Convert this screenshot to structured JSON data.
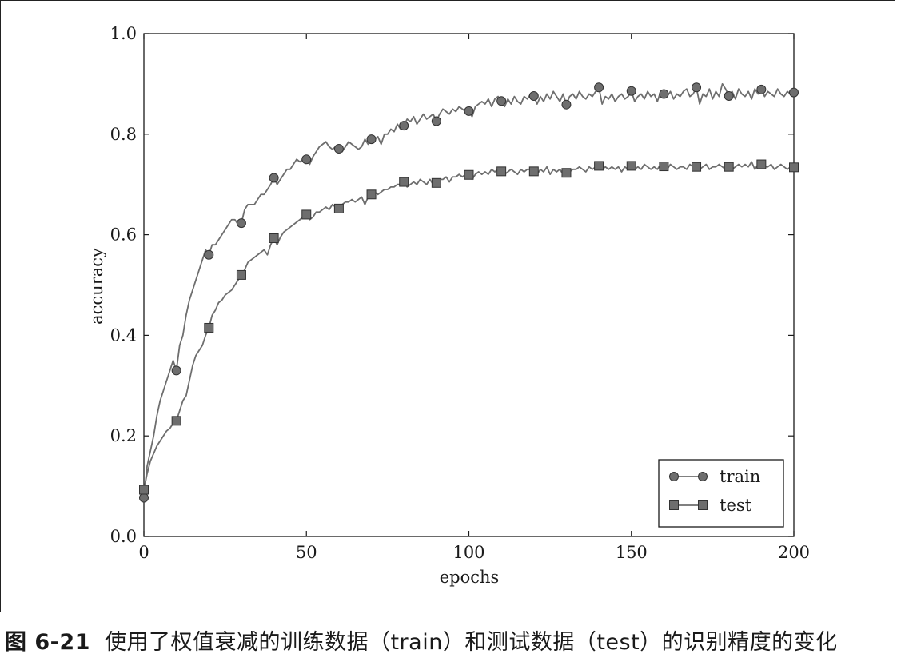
{
  "caption": {
    "figure_number": "图 6-21",
    "text": "使用了权值衰减的训练数据（train）和测试数据（test）的识别精度的变化"
  },
  "chart_data": {
    "type": "line",
    "xlabel": "epochs",
    "ylabel": "accuracy",
    "xlim": [
      0,
      200
    ],
    "ylim": [
      0.0,
      1.0
    ],
    "xticks": [
      0,
      50,
      100,
      150,
      200
    ],
    "yticks": [
      0.0,
      0.2,
      0.4,
      0.6,
      0.8,
      1.0
    ],
    "xtick_labels": [
      "0",
      "50",
      "100",
      "150",
      "200"
    ],
    "ytick_labels": [
      "0.0",
      "0.2",
      "0.4",
      "0.6",
      "0.8",
      "1.0"
    ],
    "grid": false,
    "legend": "bottom-right",
    "line_color": "#6e6e6e",
    "marker_color": "#6e6e6e",
    "series": [
      {
        "name": "train",
        "marker": "circle",
        "x": [
          0,
          1,
          2,
          3,
          4,
          5,
          6,
          7,
          8,
          9,
          10,
          11,
          12,
          13,
          14,
          15,
          16,
          17,
          18,
          19,
          20,
          21,
          22,
          23,
          24,
          25,
          26,
          27,
          28,
          29,
          30,
          31,
          32,
          33,
          34,
          35,
          36,
          37,
          38,
          39,
          40,
          41,
          42,
          43,
          44,
          45,
          46,
          47,
          48,
          49,
          50,
          51,
          52,
          53,
          54,
          55,
          56,
          57,
          58,
          59,
          60,
          61,
          62,
          63,
          64,
          65,
          66,
          67,
          68,
          69,
          70,
          71,
          72,
          73,
          74,
          75,
          76,
          77,
          78,
          79,
          80,
          81,
          82,
          83,
          84,
          85,
          86,
          87,
          88,
          89,
          90,
          91,
          92,
          93,
          94,
          95,
          96,
          97,
          98,
          99,
          100,
          101,
          102,
          103,
          104,
          105,
          106,
          107,
          108,
          109,
          110,
          111,
          112,
          113,
          114,
          115,
          116,
          117,
          118,
          119,
          120,
          121,
          122,
          123,
          124,
          125,
          126,
          127,
          128,
          129,
          130,
          131,
          132,
          133,
          134,
          135,
          136,
          137,
          138,
          139,
          140,
          141,
          142,
          143,
          144,
          145,
          146,
          147,
          148,
          149,
          150,
          151,
          152,
          153,
          154,
          155,
          156,
          157,
          158,
          159,
          160,
          161,
          162,
          163,
          164,
          165,
          166,
          167,
          168,
          169,
          170,
          171,
          172,
          173,
          174,
          175,
          176,
          177,
          178,
          179,
          180,
          181,
          182,
          183,
          184,
          185,
          186,
          187,
          188,
          189,
          190,
          191,
          192,
          193,
          194,
          195,
          196,
          197,
          198,
          199,
          200
        ],
        "y": [
          0.077,
          0.14,
          0.17,
          0.2,
          0.24,
          0.27,
          0.29,
          0.31,
          0.33,
          0.35,
          0.33,
          0.38,
          0.4,
          0.44,
          0.47,
          0.49,
          0.51,
          0.53,
          0.55,
          0.57,
          0.56,
          0.58,
          0.58,
          0.59,
          0.6,
          0.61,
          0.62,
          0.63,
          0.63,
          0.62,
          0.623,
          0.65,
          0.66,
          0.66,
          0.66,
          0.67,
          0.68,
          0.68,
          0.69,
          0.7,
          0.713,
          0.7,
          0.71,
          0.72,
          0.73,
          0.73,
          0.74,
          0.75,
          0.745,
          0.75,
          0.75,
          0.74,
          0.755,
          0.765,
          0.775,
          0.78,
          0.785,
          0.775,
          0.77,
          0.775,
          0.771,
          0.765,
          0.775,
          0.785,
          0.78,
          0.775,
          0.77,
          0.775,
          0.79,
          0.78,
          0.79,
          0.79,
          0.795,
          0.78,
          0.8,
          0.8,
          0.81,
          0.805,
          0.82,
          0.81,
          0.817,
          0.83,
          0.825,
          0.835,
          0.82,
          0.83,
          0.84,
          0.83,
          0.835,
          0.84,
          0.826,
          0.84,
          0.85,
          0.845,
          0.84,
          0.85,
          0.845,
          0.855,
          0.85,
          0.845,
          0.846,
          0.835,
          0.855,
          0.86,
          0.865,
          0.86,
          0.87,
          0.855,
          0.87,
          0.875,
          0.866,
          0.855,
          0.87,
          0.86,
          0.875,
          0.865,
          0.86,
          0.875,
          0.87,
          0.88,
          0.876,
          0.86,
          0.875,
          0.865,
          0.88,
          0.87,
          0.885,
          0.875,
          0.865,
          0.88,
          0.859,
          0.875,
          0.88,
          0.87,
          0.885,
          0.875,
          0.87,
          0.88,
          0.875,
          0.885,
          0.893,
          0.86,
          0.875,
          0.87,
          0.88,
          0.865,
          0.875,
          0.88,
          0.87,
          0.875,
          0.886,
          0.865,
          0.875,
          0.88,
          0.87,
          0.885,
          0.875,
          0.88,
          0.865,
          0.885,
          0.88,
          0.875,
          0.885,
          0.87,
          0.88,
          0.875,
          0.885,
          0.89,
          0.875,
          0.88,
          0.893,
          0.86,
          0.88,
          0.875,
          0.89,
          0.87,
          0.885,
          0.875,
          0.9,
          0.89,
          0.876,
          0.885,
          0.87,
          0.89,
          0.88,
          0.875,
          0.885,
          0.87,
          0.89,
          0.88,
          0.889,
          0.875,
          0.885,
          0.88,
          0.875,
          0.89,
          0.88,
          0.875,
          0.885,
          0.88,
          0.883
        ],
        "marker_x": [
          0,
          10,
          20,
          30,
          40,
          50,
          60,
          70,
          80,
          90,
          100,
          110,
          120,
          130,
          140,
          150,
          160,
          170,
          180,
          190,
          200
        ],
        "marker_y": [
          0.077,
          0.33,
          0.56,
          0.623,
          0.713,
          0.75,
          0.771,
          0.79,
          0.817,
          0.826,
          0.846,
          0.866,
          0.876,
          0.859,
          0.893,
          0.886,
          0.88,
          0.893,
          0.876,
          0.889,
          0.883
        ]
      },
      {
        "name": "test",
        "marker": "square",
        "x": [
          0,
          1,
          2,
          3,
          4,
          5,
          6,
          7,
          8,
          9,
          10,
          11,
          12,
          13,
          14,
          15,
          16,
          17,
          18,
          19,
          20,
          21,
          22,
          23,
          24,
          25,
          26,
          27,
          28,
          29,
          30,
          31,
          32,
          33,
          34,
          35,
          36,
          37,
          38,
          39,
          40,
          41,
          42,
          43,
          44,
          45,
          46,
          47,
          48,
          49,
          50,
          51,
          52,
          53,
          54,
          55,
          56,
          57,
          58,
          59,
          60,
          61,
          62,
          63,
          64,
          65,
          66,
          67,
          68,
          69,
          70,
          71,
          72,
          73,
          74,
          75,
          76,
          77,
          78,
          79,
          80,
          81,
          82,
          83,
          84,
          85,
          86,
          87,
          88,
          89,
          90,
          91,
          92,
          93,
          94,
          95,
          96,
          97,
          98,
          99,
          100,
          101,
          102,
          103,
          104,
          105,
          106,
          107,
          108,
          109,
          110,
          111,
          112,
          113,
          114,
          115,
          116,
          117,
          118,
          119,
          120,
          121,
          122,
          123,
          124,
          125,
          126,
          127,
          128,
          129,
          130,
          131,
          132,
          133,
          134,
          135,
          136,
          137,
          138,
          139,
          140,
          141,
          142,
          143,
          144,
          145,
          146,
          147,
          148,
          149,
          150,
          151,
          152,
          153,
          154,
          155,
          156,
          157,
          158,
          159,
          160,
          161,
          162,
          163,
          164,
          165,
          166,
          167,
          168,
          169,
          170,
          171,
          172,
          173,
          174,
          175,
          176,
          177,
          178,
          179,
          180,
          181,
          182,
          183,
          184,
          185,
          186,
          187,
          188,
          189,
          190,
          191,
          192,
          193,
          194,
          195,
          196,
          197,
          198,
          199,
          200
        ],
        "y": [
          0.093,
          0.125,
          0.15,
          0.165,
          0.18,
          0.19,
          0.2,
          0.21,
          0.215,
          0.225,
          0.23,
          0.25,
          0.27,
          0.28,
          0.31,
          0.34,
          0.36,
          0.37,
          0.38,
          0.4,
          0.415,
          0.44,
          0.45,
          0.465,
          0.47,
          0.48,
          0.485,
          0.49,
          0.5,
          0.51,
          0.52,
          0.53,
          0.545,
          0.55,
          0.555,
          0.56,
          0.565,
          0.57,
          0.56,
          0.58,
          0.593,
          0.58,
          0.595,
          0.605,
          0.61,
          0.615,
          0.62,
          0.625,
          0.63,
          0.635,
          0.64,
          0.63,
          0.635,
          0.645,
          0.645,
          0.65,
          0.655,
          0.65,
          0.66,
          0.655,
          0.652,
          0.66,
          0.665,
          0.665,
          0.67,
          0.665,
          0.67,
          0.675,
          0.66,
          0.675,
          0.68,
          0.685,
          0.68,
          0.685,
          0.69,
          0.69,
          0.695,
          0.695,
          0.7,
          0.7,
          0.705,
          0.695,
          0.7,
          0.705,
          0.7,
          0.71,
          0.705,
          0.7,
          0.71,
          0.7,
          0.703,
          0.71,
          0.71,
          0.715,
          0.705,
          0.715,
          0.715,
          0.72,
          0.715,
          0.72,
          0.719,
          0.71,
          0.72,
          0.725,
          0.72,
          0.725,
          0.72,
          0.73,
          0.725,
          0.73,
          0.726,
          0.72,
          0.725,
          0.73,
          0.725,
          0.72,
          0.73,
          0.725,
          0.73,
          0.73,
          0.726,
          0.72,
          0.73,
          0.725,
          0.735,
          0.72,
          0.73,
          0.725,
          0.73,
          0.72,
          0.723,
          0.725,
          0.73,
          0.73,
          0.735,
          0.73,
          0.725,
          0.735,
          0.73,
          0.735,
          0.737,
          0.73,
          0.735,
          0.73,
          0.735,
          0.73,
          0.735,
          0.725,
          0.735,
          0.73,
          0.737,
          0.73,
          0.735,
          0.73,
          0.74,
          0.735,
          0.73,
          0.735,
          0.73,
          0.74,
          0.736,
          0.73,
          0.74,
          0.735,
          0.73,
          0.735,
          0.735,
          0.73,
          0.74,
          0.735,
          0.735,
          0.73,
          0.735,
          0.74,
          0.73,
          0.735,
          0.735,
          0.74,
          0.735,
          0.73,
          0.735,
          0.73,
          0.735,
          0.74,
          0.735,
          0.74,
          0.735,
          0.745,
          0.73,
          0.74,
          0.74,
          0.735,
          0.735,
          0.74,
          0.73,
          0.735,
          0.74,
          0.735,
          0.73,
          0.735,
          0.734
        ],
        "marker_x": [
          0,
          10,
          20,
          30,
          40,
          50,
          60,
          70,
          80,
          90,
          100,
          110,
          120,
          130,
          140,
          150,
          160,
          170,
          180,
          190,
          200
        ],
        "marker_y": [
          0.093,
          0.23,
          0.415,
          0.52,
          0.593,
          0.64,
          0.652,
          0.68,
          0.705,
          0.703,
          0.719,
          0.726,
          0.726,
          0.723,
          0.737,
          0.737,
          0.736,
          0.735,
          0.735,
          0.74,
          0.734
        ]
      }
    ]
  }
}
